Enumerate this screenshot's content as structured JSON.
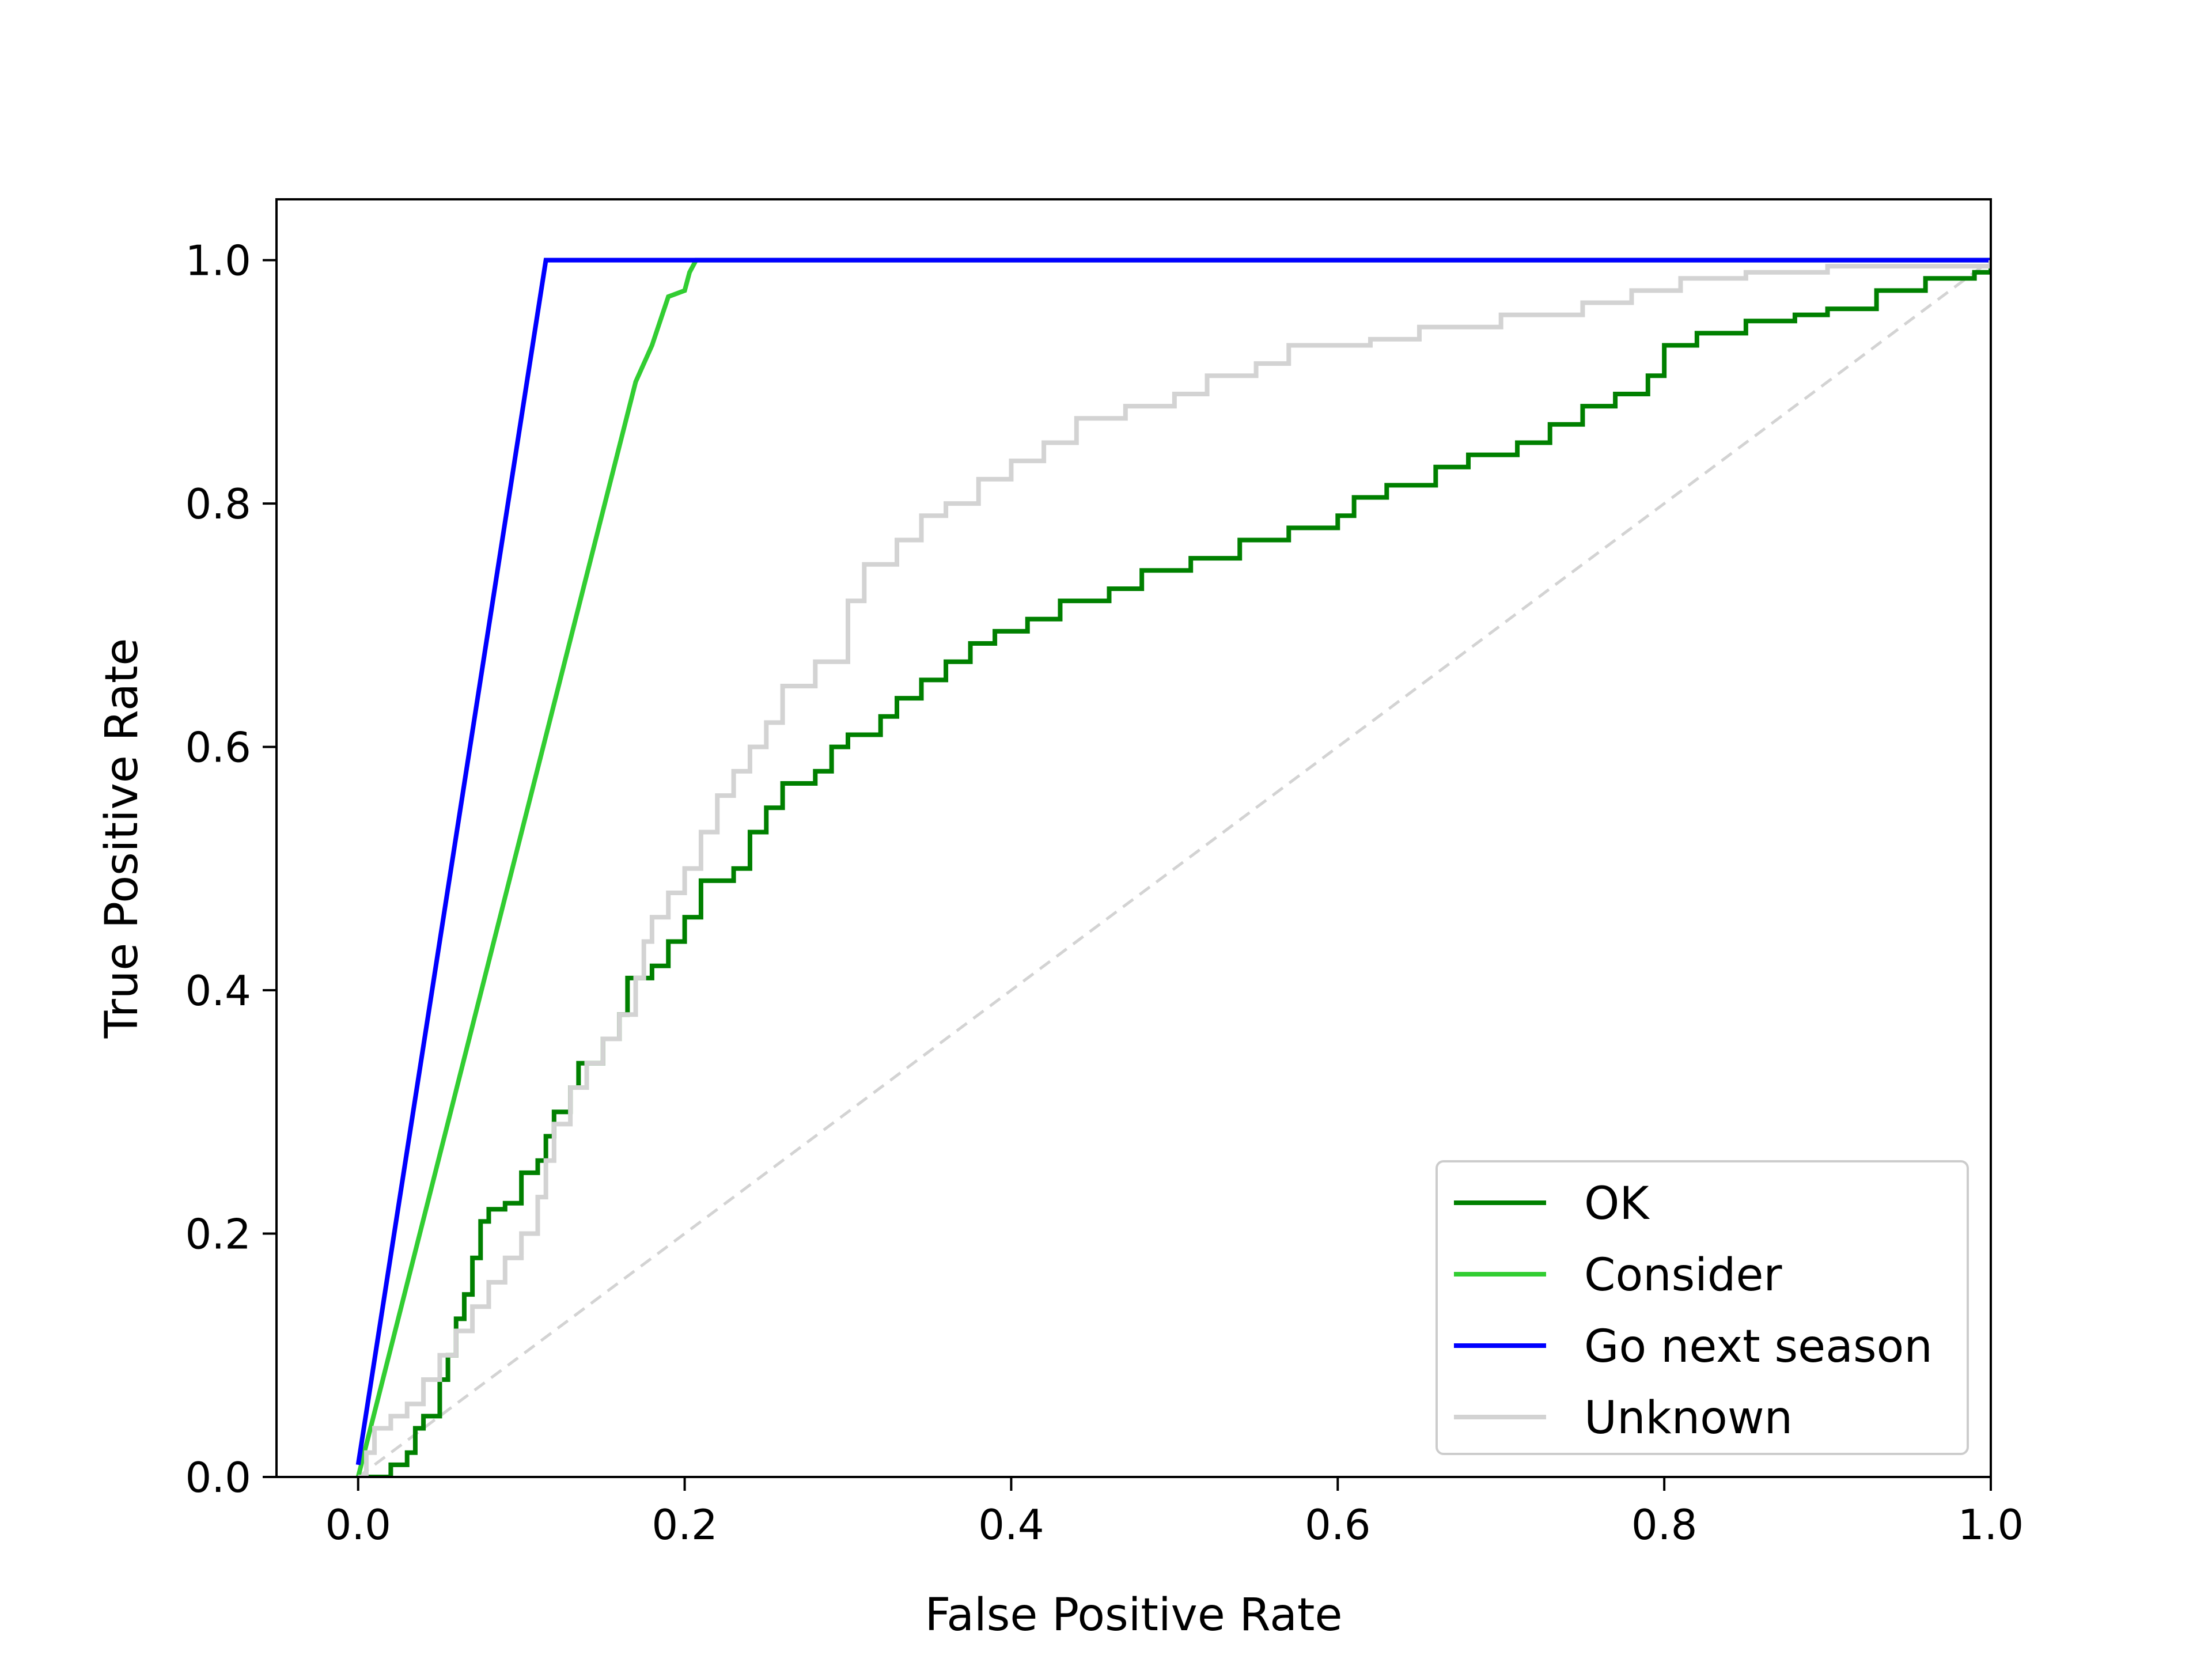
{
  "chart_data": {
    "type": "line",
    "title": "",
    "xlabel": "False Positive Rate",
    "ylabel": "True Positive Rate",
    "xlim": [
      -0.05,
      1.0
    ],
    "ylim": [
      0.0,
      1.05
    ],
    "xticks": [
      "0.0",
      "0.2",
      "0.4",
      "0.6",
      "0.8",
      "1.0"
    ],
    "yticks": [
      "0.0",
      "0.2",
      "0.4",
      "0.6",
      "0.8",
      "1.0"
    ],
    "grid": false,
    "legend_position": "lower-right",
    "series": [
      {
        "name": "OK",
        "color": "#008000",
        "step": true,
        "points": [
          [
            0.0,
            0.0
          ],
          [
            0.01,
            0.0
          ],
          [
            0.02,
            0.01
          ],
          [
            0.03,
            0.02
          ],
          [
            0.035,
            0.04
          ],
          [
            0.04,
            0.05
          ],
          [
            0.05,
            0.08
          ],
          [
            0.055,
            0.1
          ],
          [
            0.06,
            0.13
          ],
          [
            0.065,
            0.15
          ],
          [
            0.07,
            0.18
          ],
          [
            0.075,
            0.21
          ],
          [
            0.08,
            0.22
          ],
          [
            0.09,
            0.225
          ],
          [
            0.1,
            0.25
          ],
          [
            0.11,
            0.26
          ],
          [
            0.115,
            0.28
          ],
          [
            0.12,
            0.3
          ],
          [
            0.13,
            0.32
          ],
          [
            0.135,
            0.34
          ],
          [
            0.15,
            0.36
          ],
          [
            0.16,
            0.38
          ],
          [
            0.165,
            0.41
          ],
          [
            0.18,
            0.42
          ],
          [
            0.19,
            0.44
          ],
          [
            0.2,
            0.46
          ],
          [
            0.21,
            0.49
          ],
          [
            0.23,
            0.5
          ],
          [
            0.24,
            0.53
          ],
          [
            0.25,
            0.55
          ],
          [
            0.26,
            0.57
          ],
          [
            0.28,
            0.58
          ],
          [
            0.29,
            0.6
          ],
          [
            0.3,
            0.61
          ],
          [
            0.32,
            0.625
          ],
          [
            0.33,
            0.64
          ],
          [
            0.345,
            0.655
          ],
          [
            0.36,
            0.67
          ],
          [
            0.375,
            0.685
          ],
          [
            0.39,
            0.695
          ],
          [
            0.41,
            0.705
          ],
          [
            0.43,
            0.72
          ],
          [
            0.46,
            0.73
          ],
          [
            0.48,
            0.745
          ],
          [
            0.51,
            0.755
          ],
          [
            0.54,
            0.77
          ],
          [
            0.57,
            0.78
          ],
          [
            0.6,
            0.79
          ],
          [
            0.61,
            0.805
          ],
          [
            0.63,
            0.815
          ],
          [
            0.66,
            0.83
          ],
          [
            0.68,
            0.84
          ],
          [
            0.71,
            0.85
          ],
          [
            0.73,
            0.865
          ],
          [
            0.75,
            0.88
          ],
          [
            0.77,
            0.89
          ],
          [
            0.79,
            0.905
          ],
          [
            0.8,
            0.93
          ],
          [
            0.82,
            0.94
          ],
          [
            0.85,
            0.95
          ],
          [
            0.88,
            0.955
          ],
          [
            0.9,
            0.96
          ],
          [
            0.93,
            0.975
          ],
          [
            0.96,
            0.985
          ],
          [
            0.99,
            0.99
          ],
          [
            1.0,
            1.0
          ]
        ]
      },
      {
        "name": "Consider",
        "color": "#32cd32",
        "step": false,
        "points": [
          [
            0.0,
            0.0
          ],
          [
            0.17,
            0.9
          ],
          [
            0.18,
            0.93
          ],
          [
            0.19,
            0.97
          ],
          [
            0.2,
            0.975
          ],
          [
            0.203,
            0.99
          ],
          [
            0.207,
            1.0
          ],
          [
            1.0,
            1.0
          ]
        ]
      },
      {
        "name": "Go next season",
        "color": "#0000ff",
        "step": false,
        "points": [
          [
            0.0,
            0.01
          ],
          [
            0.115,
            1.0
          ],
          [
            1.0,
            1.0
          ]
        ]
      },
      {
        "name": "Unknown",
        "color": "#d3d3d3",
        "step": true,
        "points": [
          [
            0.0,
            0.0
          ],
          [
            0.005,
            0.02
          ],
          [
            0.01,
            0.04
          ],
          [
            0.02,
            0.05
          ],
          [
            0.03,
            0.06
          ],
          [
            0.04,
            0.08
          ],
          [
            0.05,
            0.1
          ],
          [
            0.06,
            0.12
          ],
          [
            0.07,
            0.14
          ],
          [
            0.08,
            0.16
          ],
          [
            0.09,
            0.18
          ],
          [
            0.1,
            0.2
          ],
          [
            0.11,
            0.23
          ],
          [
            0.115,
            0.26
          ],
          [
            0.12,
            0.29
          ],
          [
            0.13,
            0.32
          ],
          [
            0.14,
            0.34
          ],
          [
            0.15,
            0.36
          ],
          [
            0.16,
            0.38
          ],
          [
            0.17,
            0.41
          ],
          [
            0.175,
            0.44
          ],
          [
            0.18,
            0.46
          ],
          [
            0.19,
            0.48
          ],
          [
            0.2,
            0.5
          ],
          [
            0.21,
            0.53
          ],
          [
            0.22,
            0.56
          ],
          [
            0.23,
            0.58
          ],
          [
            0.24,
            0.6
          ],
          [
            0.25,
            0.62
          ],
          [
            0.26,
            0.65
          ],
          [
            0.28,
            0.67
          ],
          [
            0.3,
            0.72
          ],
          [
            0.31,
            0.75
          ],
          [
            0.33,
            0.77
          ],
          [
            0.345,
            0.79
          ],
          [
            0.36,
            0.8
          ],
          [
            0.38,
            0.82
          ],
          [
            0.4,
            0.835
          ],
          [
            0.42,
            0.85
          ],
          [
            0.44,
            0.87
          ],
          [
            0.47,
            0.88
          ],
          [
            0.5,
            0.89
          ],
          [
            0.52,
            0.905
          ],
          [
            0.55,
            0.915
          ],
          [
            0.57,
            0.93
          ],
          [
            0.62,
            0.935
          ],
          [
            0.65,
            0.945
          ],
          [
            0.7,
            0.955
          ],
          [
            0.75,
            0.965
          ],
          [
            0.78,
            0.975
          ],
          [
            0.81,
            0.985
          ],
          [
            0.85,
            0.99
          ],
          [
            0.9,
            0.995
          ],
          [
            0.97,
            0.995
          ],
          [
            1.0,
            1.0
          ]
        ]
      },
      {
        "name": "",
        "color": "#d3d3d3",
        "dashed": true,
        "points": [
          [
            0.0,
            0.0
          ],
          [
            1.0,
            1.0
          ]
        ]
      }
    ]
  }
}
